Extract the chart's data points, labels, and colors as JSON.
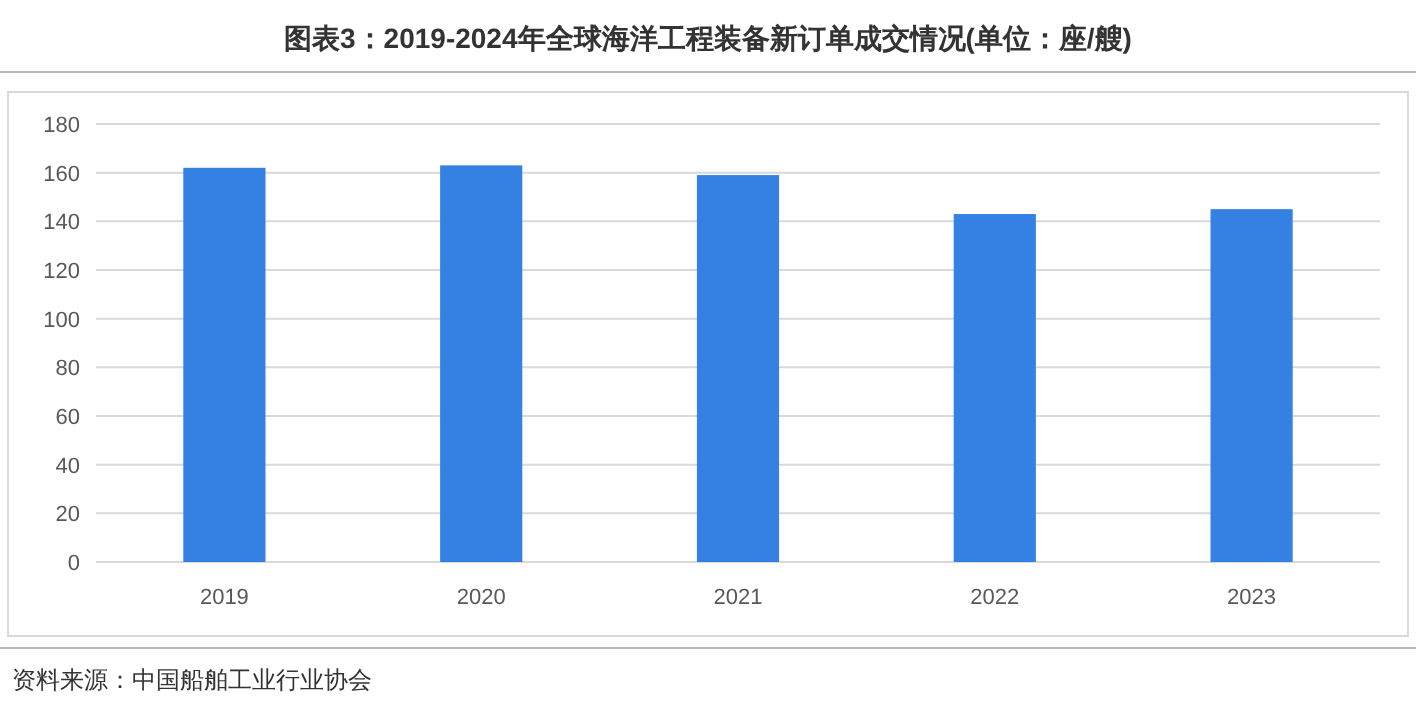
{
  "chart_data": {
    "type": "bar",
    "title": "图表3：2019-2024年全球海洋工程装备新订单成交情况(单位：座/艘)",
    "categories": [
      "2019",
      "2020",
      "2021",
      "2022",
      "2023"
    ],
    "values": [
      162,
      163,
      159,
      143,
      145
    ],
    "color": "#3481e3",
    "ylim": [
      0,
      180
    ],
    "yticks": [
      0,
      20,
      40,
      60,
      80,
      100,
      120,
      140,
      160,
      180
    ],
    "grid": "y",
    "annotations": [
      "资料来源：中国船舶工业行业协会"
    ]
  }
}
